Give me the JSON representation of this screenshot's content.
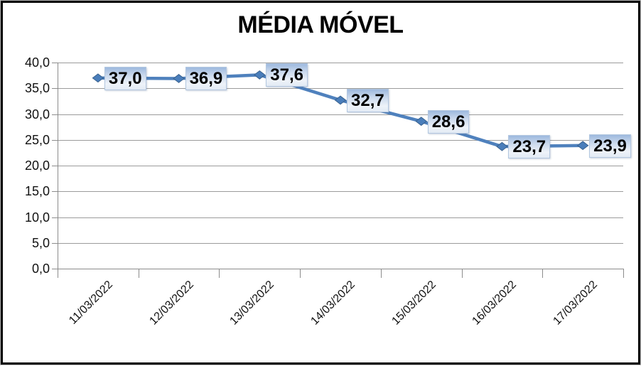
{
  "chart_data": {
    "type": "line",
    "title": "MÉDIA MÓVEL",
    "categories": [
      "11/03/2022",
      "12/03/2022",
      "13/03/2022",
      "14/03/2022",
      "15/03/2022",
      "16/03/2022",
      "17/03/2022"
    ],
    "values": [
      37.0,
      36.9,
      37.6,
      32.7,
      28.6,
      23.7,
      23.9
    ],
    "data_labels": [
      "37,0",
      "36,9",
      "37,6",
      "32,7",
      "28,6",
      "23,7",
      "23,9"
    ],
    "ylim": [
      0,
      40
    ],
    "ytick_step": 5,
    "ytick_labels": [
      "0,0",
      "5,0",
      "10,0",
      "15,0",
      "20,0",
      "25,0",
      "30,0",
      "35,0",
      "40,0"
    ],
    "grid": true,
    "legend": "none",
    "colors": {
      "line": "#4F81BD",
      "marker_fill": "#4A7EBB",
      "marker_edge": "#38618E",
      "label_box_top": "#9DB9DE",
      "label_box_bottom": "#E2EAF4",
      "gridline": "#9B9B9B",
      "axis": "#8C8C8C",
      "title_text": "#000000",
      "background": "#FFFFFF",
      "border": "#000000"
    }
  }
}
